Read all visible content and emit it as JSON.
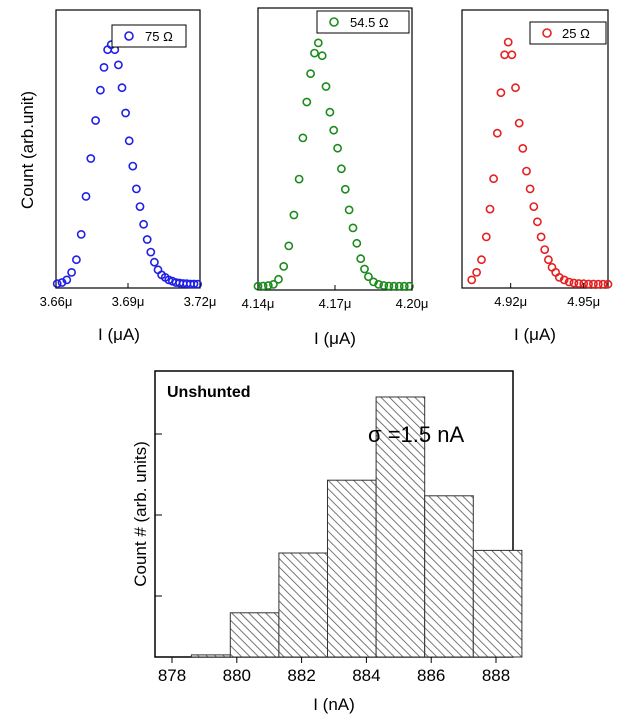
{
  "colors": {
    "blue": "#1f1fe6",
    "green": "#1c8a1c",
    "red": "#e52020",
    "axis": "#000000",
    "hatch": "#666666"
  },
  "chart_data": [
    {
      "type": "scatter",
      "series": [
        {
          "name": "75 Ω",
          "color": "#1f1fe6",
          "x": [
            3.6605,
            3.6625,
            3.6645,
            3.6665,
            3.6685,
            3.6705,
            3.6725,
            3.6745,
            3.6765,
            3.6785,
            3.68,
            3.6815,
            3.683,
            3.6845,
            3.686,
            3.6875,
            3.689,
            3.6905,
            3.692,
            3.6935,
            3.695,
            3.6965,
            3.698,
            3.6995,
            3.701,
            3.7025,
            3.704,
            3.7055,
            3.707,
            3.7085,
            3.71,
            3.7115,
            3.713,
            3.7145,
            3.716,
            3.7175,
            3.719
          ],
          "y": [
            0.005,
            0.01,
            0.02,
            0.05,
            0.1,
            0.2,
            0.35,
            0.5,
            0.65,
            0.77,
            0.86,
            0.93,
            0.95,
            0.93,
            0.87,
            0.78,
            0.68,
            0.57,
            0.47,
            0.38,
            0.31,
            0.24,
            0.18,
            0.13,
            0.09,
            0.06,
            0.04,
            0.03,
            0.02,
            0.015,
            0.01,
            0.008,
            0.006,
            0.005,
            0.004,
            0.004,
            0.003
          ]
        }
      ],
      "xlim": [
        3.66,
        3.72
      ],
      "ylim": [
        0,
        1
      ],
      "xticks": [
        "3.66μ",
        "3.69μ",
        "3.72μ"
      ],
      "xtick_values": [
        3.66,
        3.69,
        3.72
      ],
      "ylabel": "Count (arb.unit)",
      "xlabel": "I (μA)",
      "legend": "75 Ω"
    },
    {
      "type": "scatter",
      "series": [
        {
          "name": "54.5 Ω",
          "color": "#1c8a1c",
          "x": [
            4.14,
            4.142,
            4.144,
            4.146,
            4.148,
            4.15,
            4.152,
            4.154,
            4.156,
            4.1575,
            4.159,
            4.1605,
            4.162,
            4.1635,
            4.165,
            4.1665,
            4.168,
            4.1695,
            4.171,
            4.1725,
            4.174,
            4.1755,
            4.177,
            4.1785,
            4.18,
            4.1815,
            4.183,
            4.185,
            4.187,
            4.189,
            4.191,
            4.193,
            4.195,
            4.197,
            4.199
          ],
          "y": [
            0.003,
            0.004,
            0.006,
            0.01,
            0.03,
            0.08,
            0.16,
            0.28,
            0.42,
            0.58,
            0.72,
            0.83,
            0.91,
            0.95,
            0.9,
            0.78,
            0.68,
            0.61,
            0.54,
            0.46,
            0.38,
            0.3,
            0.23,
            0.17,
            0.11,
            0.07,
            0.04,
            0.02,
            0.01,
            0.006,
            0.004,
            0.003,
            0.003,
            0.003,
            0.003
          ]
        }
      ],
      "xlim": [
        4.14,
        4.2
      ],
      "ylim": [
        0,
        1
      ],
      "xticks": [
        "4.14μ",
        "4.17μ",
        "4.20μ"
      ],
      "xtick_values": [
        4.14,
        4.17,
        4.2
      ],
      "xlabel": "I (μA)",
      "legend": "54.5 Ω"
    },
    {
      "type": "scatter",
      "series": [
        {
          "name": "25 Ω",
          "color": "#e52020",
          "x": [
            4.904,
            4.906,
            4.908,
            4.91,
            4.9115,
            4.913,
            4.9145,
            4.916,
            4.9175,
            4.919,
            4.9205,
            4.922,
            4.9235,
            4.925,
            4.9265,
            4.928,
            4.9295,
            4.931,
            4.9325,
            4.934,
            4.9355,
            4.937,
            4.9385,
            4.94,
            4.942,
            4.944,
            4.946,
            4.948,
            4.95,
            4.952,
            4.954,
            4.956,
            4.958,
            4.96
          ],
          "y": [
            0.02,
            0.05,
            0.1,
            0.19,
            0.3,
            0.42,
            0.6,
            0.76,
            0.91,
            0.96,
            0.91,
            0.78,
            0.64,
            0.54,
            0.45,
            0.38,
            0.31,
            0.25,
            0.19,
            0.14,
            0.1,
            0.07,
            0.05,
            0.03,
            0.02,
            0.012,
            0.008,
            0.006,
            0.005,
            0.004,
            0.004,
            0.003,
            0.003,
            0.003
          ]
        }
      ],
      "xlim": [
        4.9,
        4.96
      ],
      "ylim": [
        0,
        1
      ],
      "xticks": [
        "4.92μ",
        "4.95μ"
      ],
      "xtick_values": [
        4.92,
        4.95
      ],
      "xlabel": "I (μA)",
      "legend": "25 Ω"
    },
    {
      "type": "bar",
      "bins": [
        [
          878.5,
          880
        ],
        [
          880,
          881.5
        ],
        [
          881.5,
          883
        ],
        [
          883,
          884.5
        ],
        [
          884.5,
          886
        ],
        [
          886,
          887.5
        ],
        [
          887.5,
          889
        ]
      ],
      "bars": [
        {
          "x0": 878.6,
          "x1": 879.8,
          "value": 0.008
        },
        {
          "x0": 879.8,
          "x1": 881.3,
          "value": 0.17
        },
        {
          "x0": 881.3,
          "x1": 882.8,
          "value": 0.4
        },
        {
          "x0": 882.8,
          "x1": 884.3,
          "value": 0.68
        },
        {
          "x0": 884.3,
          "x1": 885.8,
          "value": 1.0
        },
        {
          "x0": 885.8,
          "x1": 887.3,
          "value": 0.62
        },
        {
          "x0": 887.3,
          "x1": 888.8,
          "value": 0.41
        }
      ],
      "xlim": [
        878,
        888
      ],
      "ylim": [
        0,
        1.1
      ],
      "xticks": [
        "878",
        "880",
        "882",
        "884",
        "886",
        "888"
      ],
      "xtick_values": [
        878,
        880,
        882,
        884,
        886,
        888
      ],
      "xlabel": "I (nA)",
      "ylabel": "Count # (arb. units)",
      "annotation_label": "Unshunted",
      "annotation_sigma": "σ =1.5 nA"
    }
  ]
}
